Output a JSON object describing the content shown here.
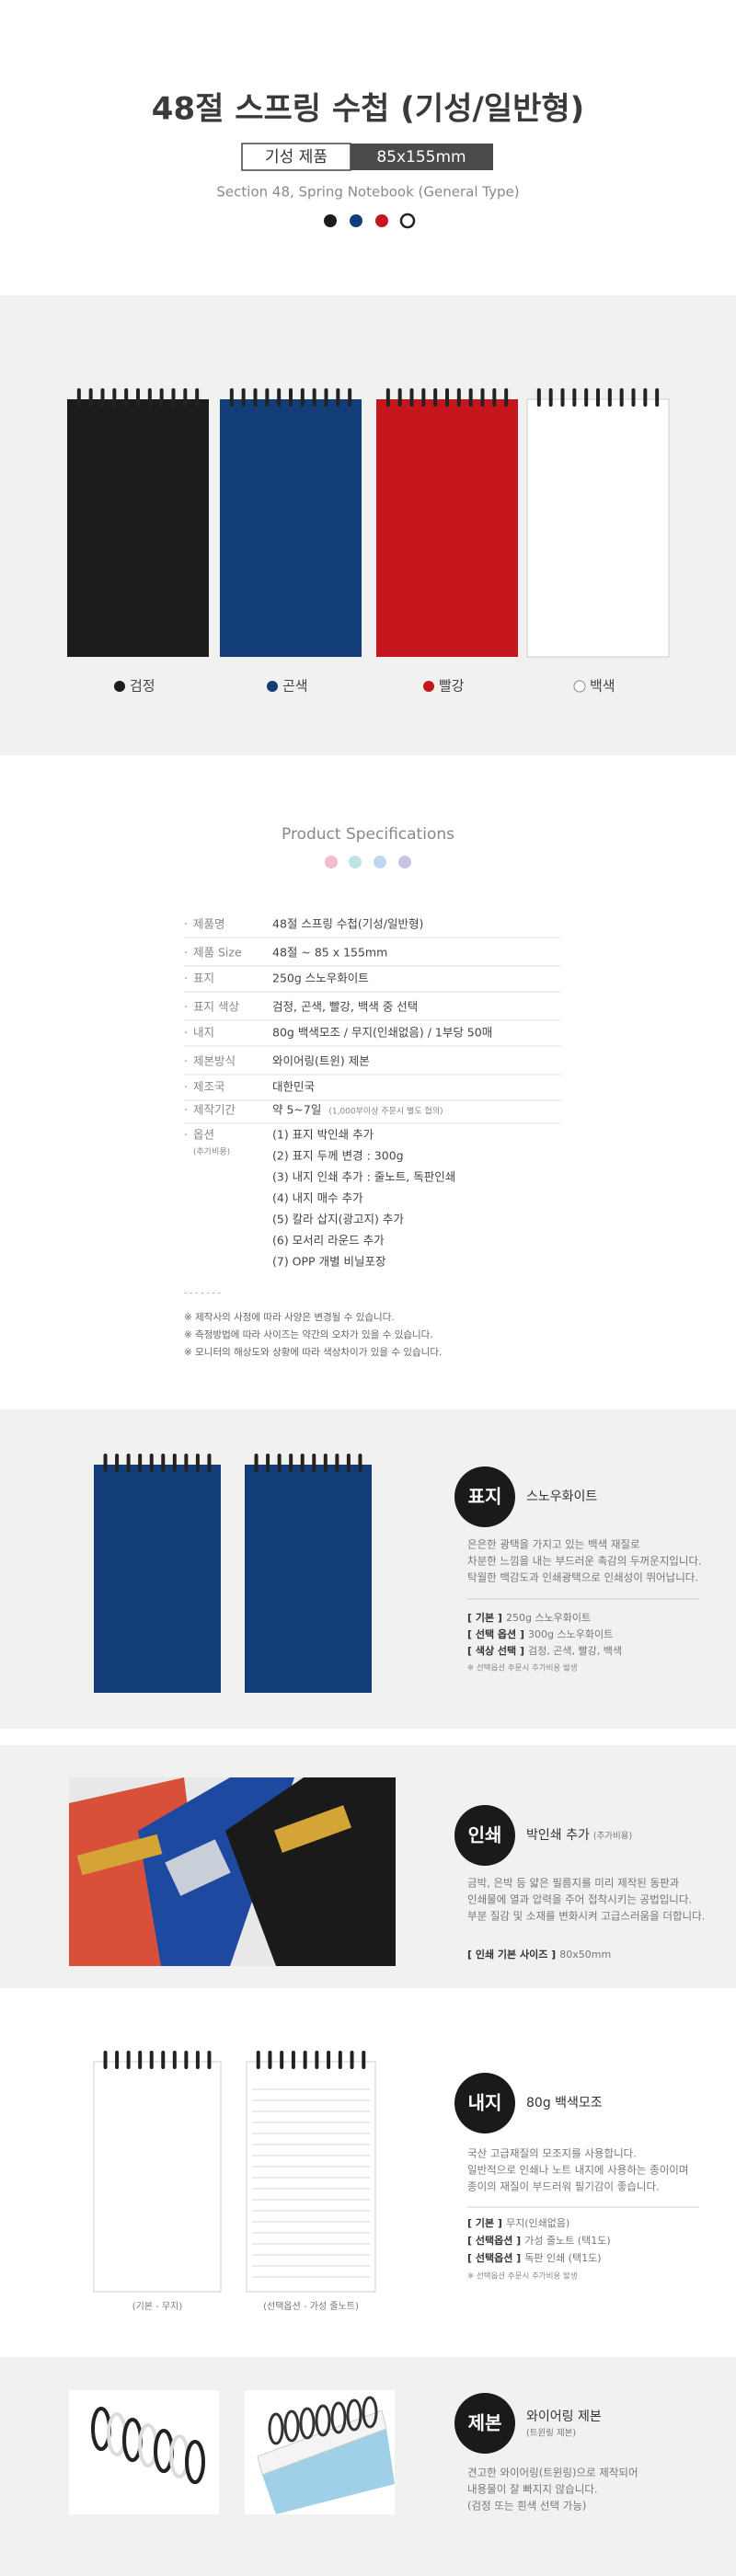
{
  "header": {
    "title": "48절 스프링 수첩 (기성/일반형)",
    "badge_label": "기성 제품",
    "badge_size": "85x155mm",
    "subtitle": "Section 48, Spring Notebook (General Type)"
  },
  "colors": [
    {
      "name": "검정",
      "hex": "#1c1c1c"
    },
    {
      "name": "곤색",
      "hex": "#123d78"
    },
    {
      "name": "빨강",
      "hex": "#c5161d"
    },
    {
      "name": "백색",
      "hex": "#ffffff"
    }
  ],
  "specs": {
    "title": "Product Specifications",
    "rows": [
      {
        "label": "제품명",
        "value": "48절 스프링 수첩(기성/일반형)"
      },
      {
        "label": "제품 Size",
        "value": "48절 ~ 85 x 155mm"
      },
      {
        "label": "표지",
        "value": "250g 스노우화이트"
      },
      {
        "label": "표지 색상",
        "value": "검정, 곤색, 빨강, 백색 중 선택"
      },
      {
        "label": "내지",
        "value": "80g 백색모조 / 무지(인쇄없음) / 1부당 50매"
      },
      {
        "label": "제본방식",
        "value": "와이어링(트윈) 제본"
      },
      {
        "label": "제조국",
        "value": "대한민국"
      },
      {
        "label": "제작기간",
        "value": "약 5~7일",
        "note": "(1,000부이상 주문시 별도 협의)"
      }
    ],
    "options_label": "옵션",
    "options_note": "(추가비용)",
    "options": [
      "(1) 표지 박인쇄 추가",
      "(2) 표지 두께 변경 : 300g",
      "(3) 내지 인쇄 추가 : 줄노트, 독판인쇄",
      "(4) 내지 매수 추가",
      "(5) 칼라 삽지(광고지) 추가",
      "(6) 모서리 라운드 추가",
      "(7) OPP 개별 비닐포장"
    ],
    "notes": [
      "※ 제작사의 사정에 따라 사양은 변경될 수 있습니다.",
      "※ 측정방법에 따라 사이즈는 약간의 오차가 있을 수 있습니다.",
      "※ 모니터의 해상도와 상황에 따라 색상차이가 있을 수 있습니다."
    ]
  },
  "features": [
    {
      "badge": "표지",
      "title": "스노우화이트",
      "description": [
        "은은한 광택을 가지고 있는 백색 재질로",
        "차분한 느낌을 내는 부드러운 촉감의 두꺼운지입니다.",
        "탁월한 백감도과 인쇄광택으로 인쇄성이 뛰어납니다."
      ],
      "details": [
        {
          "label": "[ 기본 ]",
          "value": "250g 스노우화이트"
        },
        {
          "label": "[ 선택 옵션 ]",
          "value": "300g 스노우화이트"
        },
        {
          "label": "[ 색상 선택 ]",
          "value": "검정, 곤색, 빨강, 백색"
        }
      ],
      "footnote": "※ 선택옵션 주문시 추가비용 발생"
    },
    {
      "badge": "인쇄",
      "title": "박인쇄 추가",
      "title_note": "(추가비용)",
      "description": [
        "금박, 은박 등 얇은 필름지를 미리 제작된 동판과",
        "인쇄물에 열과 압력을 주어 접착시키는 공법입니다.",
        "부분 질감 및 소재를 변화시켜 고급스러움을 더합니다."
      ],
      "details": [
        {
          "label": "[ 인쇄 기본 사이즈 ]",
          "value": "80x50mm"
        }
      ]
    },
    {
      "badge": "내지",
      "title": "80g 백색모조",
      "description": [
        "국산 고급재질의 모조지를 사용합니다.",
        "일반적으로 인쇄나 노트 내지에 사용하는 종이이며",
        "종이의 재질이 부드러워 필기감이 좋습니다."
      ],
      "details": [
        {
          "label": "[ 기본 ]",
          "value": "무지(인쇄없음)"
        },
        {
          "label": "[ 선택옵션 ]",
          "value": "가성 줄노트 (택1도)"
        },
        {
          "label": "[ 선택옵션 ]",
          "value": "독판 인쇄 (택1도)"
        }
      ],
      "footnote": "※ 선택옵션 주문시 추가비용 발생",
      "captions": [
        "(기본 - 무지)",
        "(선택옵션 - 가성 줄노트)"
      ]
    },
    {
      "badge": "제본",
      "title": "와이어링 제본",
      "title_note": "(트윈링 제본)",
      "description": [
        "견고한 와이어링(트윈링)으로 제작되어",
        "내용물이 잘 빠지지 않습니다.",
        "(검정 또는 흰색 선택 가능)"
      ]
    }
  ]
}
